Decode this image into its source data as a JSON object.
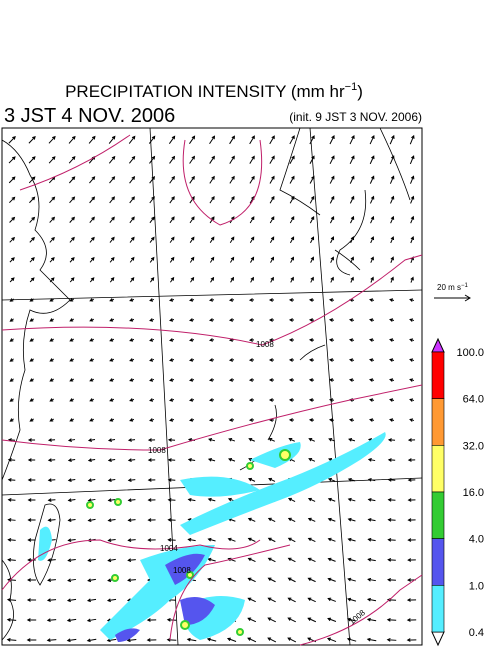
{
  "title": {
    "main": "PRECIPITATION INTENSITY (mm hr",
    "exponent": "−1",
    "close": ")"
  },
  "valid_time": "3 JST 4 NOV. 2006",
  "init_time": "(init. 9 JST 3 NOV. 2006)",
  "wind_scale": {
    "label": "20 m s",
    "exponent": "−1"
  },
  "colorbar": {
    "levels": [
      {
        "value": 100,
        "label": "100.0"
      },
      {
        "value": 64,
        "label": "64.0"
      },
      {
        "value": 32,
        "label": "32.0"
      },
      {
        "value": 16,
        "label": "16.0"
      },
      {
        "value": 4,
        "label": "4.0"
      },
      {
        "value": 1,
        "label": "1.0"
      },
      {
        "value": 0.4,
        "label": "0.4"
      }
    ],
    "colors": [
      "#ff0000",
      "#ff9933",
      "#ffff66",
      "#33cc33",
      "#5555ee",
      "#55eeff"
    ],
    "over_color": "#cc33ff",
    "under_color": "#ffffff"
  },
  "isobar_labels": [
    "1008",
    "1008",
    "1004",
    "1008",
    "1008"
  ]
}
